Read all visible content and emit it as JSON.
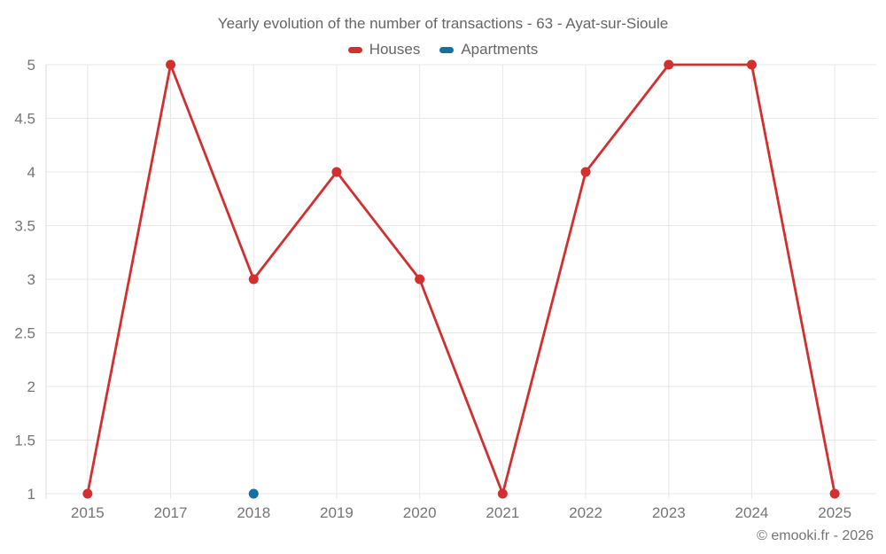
{
  "title": "Yearly evolution of the number of transactions - 63 - Ayat-sur-Sioule",
  "legend": [
    {
      "label": "Houses",
      "color": "#d32f2f"
    },
    {
      "label": "Apartments",
      "color": "#1170a4"
    }
  ],
  "watermark": "© emooki.fr - 2026",
  "colors": {
    "grid": "#e7e7e7",
    "axis_line": "#dedede",
    "tick_label": "#757575"
  },
  "chart_data": {
    "type": "line",
    "title": "Yearly evolution of the number of transactions - 63 - Ayat-sur-Sioule",
    "categories": [
      "2015",
      "2017",
      "2018",
      "2019",
      "2020",
      "2021",
      "2022",
      "2023",
      "2024",
      "2025"
    ],
    "series": [
      {
        "name": "Houses",
        "color": "#d32f2f",
        "values": [
          1,
          5,
          3,
          4,
          3,
          1,
          4,
          5,
          5,
          1
        ]
      },
      {
        "name": "Apartments",
        "color": "#1170a4",
        "values": [
          null,
          null,
          1,
          null,
          null,
          null,
          null,
          null,
          null,
          null
        ]
      }
    ],
    "xlabel": "",
    "ylabel": "",
    "ylim": [
      1,
      5
    ],
    "yticks": [
      1,
      1.5,
      2,
      2.5,
      3,
      3.5,
      4,
      4.5,
      5
    ],
    "ytick_labels": [
      "1",
      "1.5",
      "2",
      "2.5",
      "3",
      "3.5",
      "4",
      "4.5",
      "5"
    ],
    "grid": true,
    "legend_position": "top"
  }
}
